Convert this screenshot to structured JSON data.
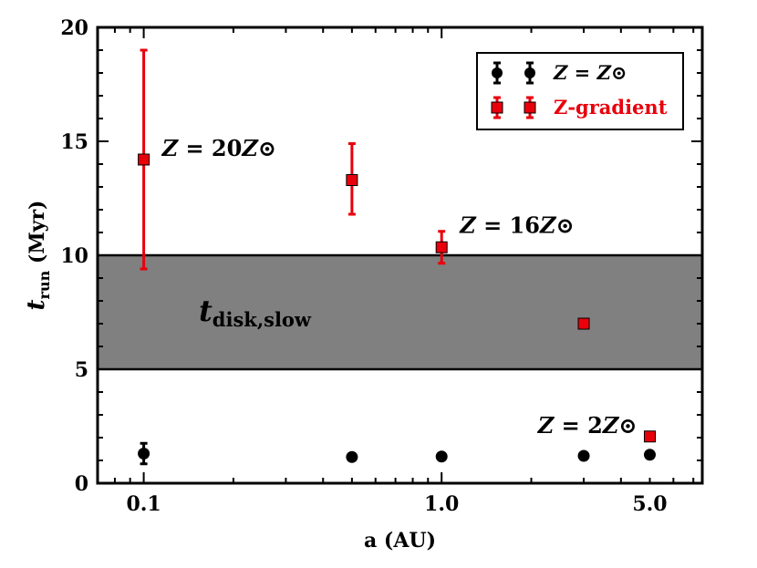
{
  "chart_data": {
    "type": "scatter",
    "xscale": "log",
    "xlim": [
      0.07,
      7.5
    ],
    "ylim": [
      0,
      20
    ],
    "xticks": [
      0.1,
      1.0,
      5.0
    ],
    "xtick_labels": [
      "0.1",
      "1.0",
      "5.0"
    ],
    "yticks": [
      0,
      5,
      10,
      15,
      20
    ],
    "ytick_labels": [
      "0",
      "5",
      "10",
      "15",
      "20"
    ],
    "xlabel": "a (AU)",
    "ylabel": {
      "main": "t",
      "sub": "run",
      "unit": "(Myr)"
    },
    "band": {
      "y0": 5,
      "y1": 10,
      "color": "#808080",
      "label_main": "t",
      "label_sub": "disk,slow"
    },
    "series": [
      {
        "name": "Z = Z⊙",
        "color": "#000000",
        "marker": "circle",
        "points": [
          {
            "x": 0.1,
            "y": 1.3,
            "err_lo": 0.45,
            "err_hi": 0.45
          },
          {
            "x": 0.5,
            "y": 1.15,
            "err_lo": 0,
            "err_hi": 0
          },
          {
            "x": 1.0,
            "y": 1.17,
            "err_lo": 0,
            "err_hi": 0
          },
          {
            "x": 3.0,
            "y": 1.2,
            "err_lo": 0,
            "err_hi": 0
          },
          {
            "x": 5.0,
            "y": 1.25,
            "err_lo": 0,
            "err_hi": 0
          }
        ]
      },
      {
        "name": "Z-gradient",
        "color": "#e8000b",
        "marker": "square",
        "points": [
          {
            "x": 0.1,
            "y": 14.2,
            "err_lo": 4.8,
            "err_hi": 4.8
          },
          {
            "x": 0.5,
            "y": 13.3,
            "err_lo": 1.5,
            "err_hi": 1.6
          },
          {
            "x": 1.0,
            "y": 10.35,
            "err_lo": 0.7,
            "err_hi": 0.7
          },
          {
            "x": 3.0,
            "y": 7.0,
            "err_lo": 0,
            "err_hi": 0
          },
          {
            "x": 5.0,
            "y": 2.05,
            "err_lo": 0,
            "err_hi": 0
          }
        ]
      }
    ],
    "annotations": [
      {
        "text": "Z = 20Z⊙",
        "x": 0.1,
        "y": 14.2
      },
      {
        "text": "Z = 16Z⊙",
        "x": 1.0,
        "y": 10.35
      },
      {
        "text": "Z = 2Z⊙",
        "x": 5.0,
        "y": 2.05
      }
    ],
    "legend_position": "top-right"
  }
}
